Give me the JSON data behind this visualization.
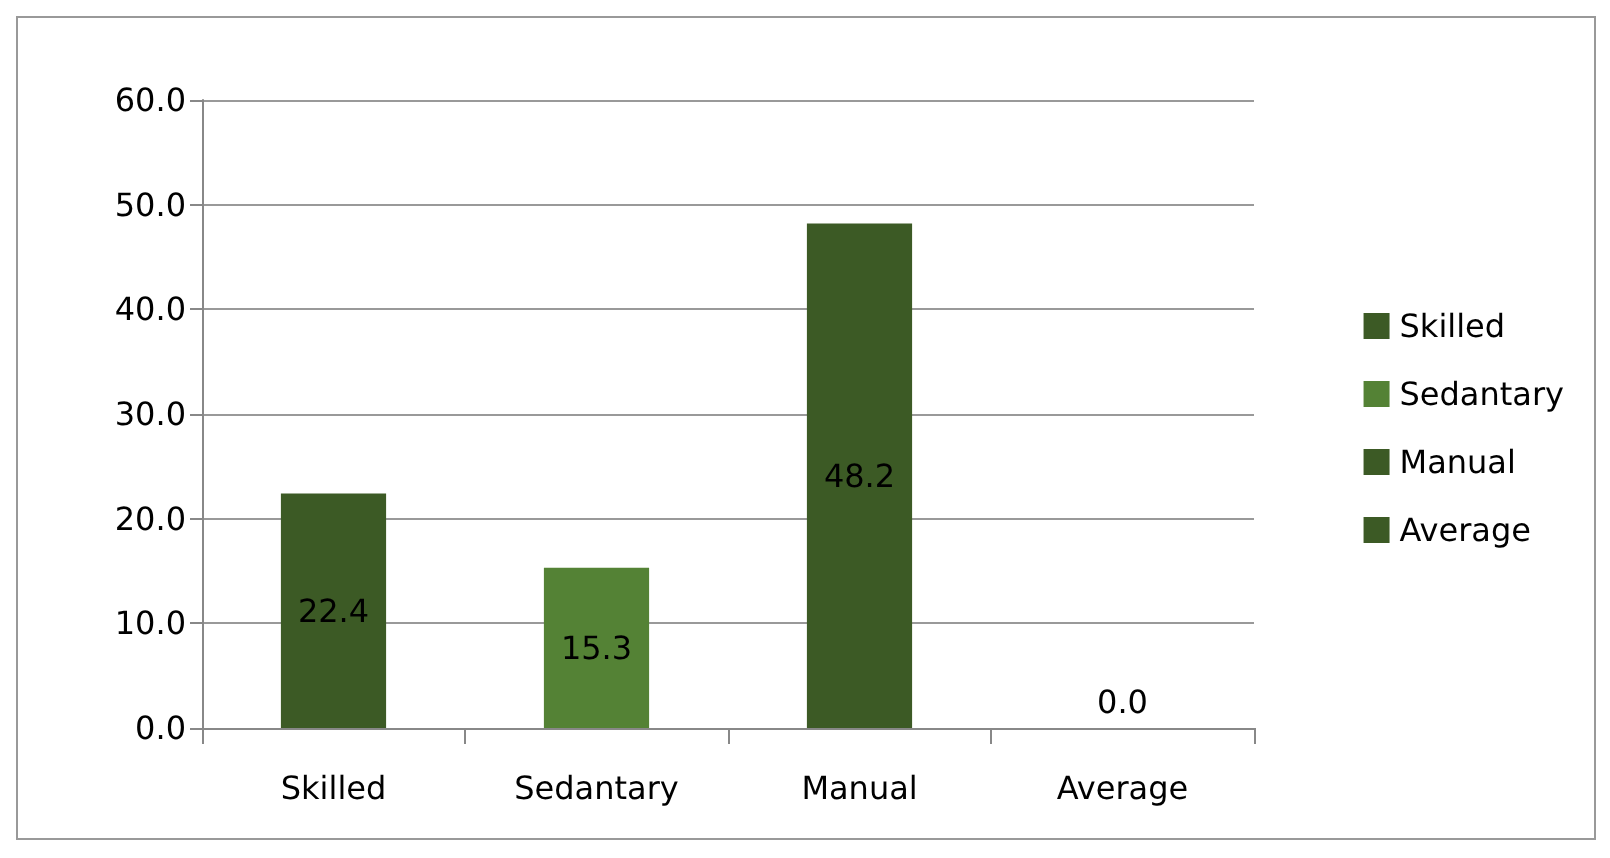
{
  "chart_data": {
    "type": "bar",
    "categories": [
      "Skilled",
      "Sedantary",
      "Manual",
      "Average"
    ],
    "series": [
      {
        "name": "Skilled",
        "color": "#3c5a25",
        "values": [
          22.4,
          null,
          null,
          null
        ],
        "value_labels": [
          "22.4",
          null,
          null,
          null
        ]
      },
      {
        "name": "Sedantary",
        "color": "#548235",
        "values": [
          null,
          15.3,
          null,
          null
        ],
        "value_labels": [
          null,
          "15.3",
          null,
          null
        ]
      },
      {
        "name": "Manual",
        "color": "#3c5a25",
        "values": [
          null,
          null,
          48.2,
          null
        ],
        "value_labels": [
          null,
          null,
          "48.2",
          null
        ]
      },
      {
        "name": "Average",
        "color": "#3c5a25",
        "values": [
          null,
          null,
          null,
          0
        ],
        "value_labels": [
          null,
          null,
          null,
          "0.0"
        ]
      }
    ],
    "stacked": true,
    "ylim": [
      0,
      60
    ],
    "yticks": [
      {
        "value": 0,
        "label": "0.0"
      },
      {
        "value": 10,
        "label": "10.0"
      },
      {
        "value": 20,
        "label": "20.0"
      },
      {
        "value": 30,
        "label": "30.0"
      },
      {
        "value": 40,
        "label": "40.0"
      },
      {
        "value": 50,
        "label": "50.0"
      },
      {
        "value": 60,
        "label": "60.0"
      }
    ],
    "grid": "y",
    "legend": "right"
  }
}
